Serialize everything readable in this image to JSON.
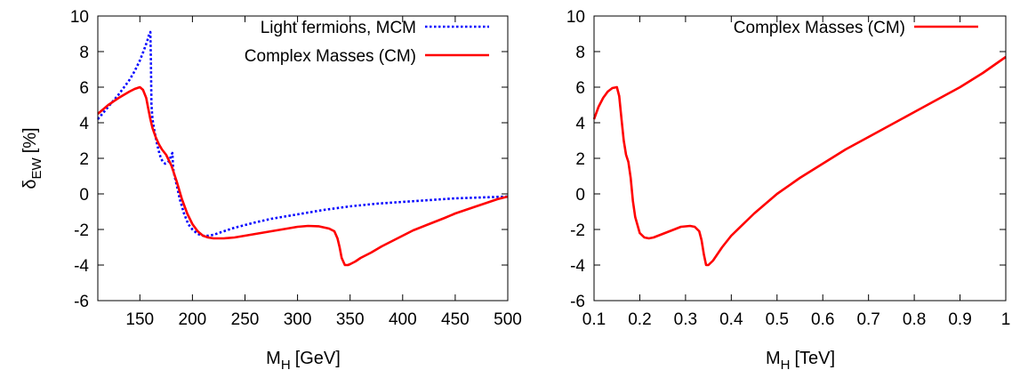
{
  "chart_data": [
    {
      "type": "line",
      "xlabel": "M",
      "xlabel_sub": "H",
      "xlabel_unit": "[GeV]",
      "ylabel": "δ",
      "ylabel_sub": "EW",
      "ylabel_unit": "[%]",
      "xlim": [
        110,
        500
      ],
      "ylim": [
        -6,
        10
      ],
      "xticks": [
        150,
        200,
        250,
        300,
        350,
        400,
        450,
        500
      ],
      "yticks": [
        -6,
        -4,
        -2,
        0,
        2,
        4,
        6,
        8,
        10
      ],
      "grid": false,
      "legend_position": "top-right",
      "series": [
        {
          "name": "Light fermions, MCM",
          "color": "#0000ff",
          "style": "dotted",
          "x": [
            110,
            120,
            130,
            140,
            145,
            150,
            154,
            157,
            159,
            160,
            160.5,
            161,
            162,
            164,
            166,
            168,
            170,
            172,
            174,
            176,
            178,
            180,
            181,
            181.5,
            182,
            183,
            185,
            188,
            192,
            196,
            200,
            205,
            210,
            215,
            220,
            225,
            230,
            240,
            250,
            260,
            275,
            300,
            325,
            350,
            375,
            400,
            425,
            450,
            475,
            500
          ],
          "y": [
            4.2,
            4.9,
            5.6,
            6.4,
            6.9,
            7.5,
            8.1,
            8.6,
            9.0,
            9.1,
            7.5,
            5.0,
            4.2,
            3.5,
            2.9,
            2.4,
            2.0,
            1.8,
            1.7,
            1.75,
            1.85,
            2.2,
            2.3,
            1.6,
            1.3,
            1.0,
            0.5,
            -0.3,
            -1.1,
            -1.7,
            -2.0,
            -2.25,
            -2.35,
            -2.35,
            -2.3,
            -2.2,
            -2.1,
            -1.9,
            -1.75,
            -1.6,
            -1.4,
            -1.15,
            -0.9,
            -0.7,
            -0.55,
            -0.45,
            -0.35,
            -0.25,
            -0.2,
            -0.15
          ]
        },
        {
          "name": "Complex Masses (CM)",
          "color": "#ff0000",
          "style": "solid",
          "x": [
            110,
            120,
            130,
            140,
            145,
            150,
            153,
            156,
            158,
            160,
            162,
            165,
            168,
            171,
            175,
            180,
            185,
            190,
            195,
            200,
            205,
            210,
            215,
            220,
            230,
            240,
            250,
            260,
            275,
            290,
            300,
            310,
            320,
            330,
            335,
            338,
            340,
            342,
            345,
            348,
            350,
            355,
            360,
            370,
            380,
            390,
            400,
            410,
            425,
            440,
            450,
            460,
            470,
            480,
            490,
            500
          ],
          "y": [
            4.5,
            5.0,
            5.4,
            5.75,
            5.9,
            6.0,
            5.85,
            5.4,
            4.8,
            4.2,
            3.7,
            3.2,
            2.8,
            2.5,
            2.2,
            1.6,
            0.7,
            -0.3,
            -1.1,
            -1.7,
            -2.1,
            -2.35,
            -2.45,
            -2.5,
            -2.5,
            -2.45,
            -2.35,
            -2.25,
            -2.1,
            -1.95,
            -1.85,
            -1.8,
            -1.82,
            -1.95,
            -2.1,
            -2.5,
            -3.0,
            -3.6,
            -4.0,
            -4.0,
            -3.95,
            -3.8,
            -3.6,
            -3.3,
            -2.95,
            -2.65,
            -2.35,
            -2.05,
            -1.7,
            -1.35,
            -1.1,
            -0.9,
            -0.7,
            -0.5,
            -0.3,
            -0.15
          ]
        }
      ]
    },
    {
      "type": "line",
      "xlabel": "M",
      "xlabel_sub": "H",
      "xlabel_unit": "[TeV]",
      "xlim": [
        0.1,
        1.0
      ],
      "ylim": [
        -6,
        10
      ],
      "xticks": [
        "0.1",
        "0.2",
        "0.3",
        "0.4",
        "0.5",
        "0.6",
        "0.7",
        "0.8",
        "0.9",
        "1"
      ],
      "yticks": [
        -6,
        -4,
        -2,
        0,
        2,
        4,
        6,
        8,
        10
      ],
      "grid": false,
      "legend_position": "top-right",
      "series": [
        {
          "name": "Complex Masses (CM)",
          "color": "#ff0000",
          "style": "solid",
          "x": [
            0.1,
            0.11,
            0.12,
            0.13,
            0.14,
            0.15,
            0.155,
            0.16,
            0.165,
            0.17,
            0.175,
            0.18,
            0.185,
            0.19,
            0.2,
            0.21,
            0.22,
            0.23,
            0.25,
            0.27,
            0.29,
            0.31,
            0.32,
            0.33,
            0.335,
            0.34,
            0.345,
            0.35,
            0.36,
            0.38,
            0.4,
            0.45,
            0.5,
            0.55,
            0.6,
            0.65,
            0.7,
            0.75,
            0.8,
            0.85,
            0.9,
            0.95,
            1.0
          ],
          "y": [
            4.2,
            4.9,
            5.4,
            5.75,
            5.95,
            6.0,
            5.5,
            4.2,
            3.0,
            2.2,
            1.8,
            0.9,
            -0.4,
            -1.3,
            -2.2,
            -2.45,
            -2.5,
            -2.45,
            -2.25,
            -2.05,
            -1.85,
            -1.8,
            -1.85,
            -2.1,
            -2.6,
            -3.4,
            -4.0,
            -4.0,
            -3.75,
            -3.0,
            -2.35,
            -1.1,
            0.0,
            0.9,
            1.7,
            2.5,
            3.2,
            3.9,
            4.6,
            5.3,
            6.0,
            6.8,
            7.7
          ]
        }
      ]
    }
  ]
}
